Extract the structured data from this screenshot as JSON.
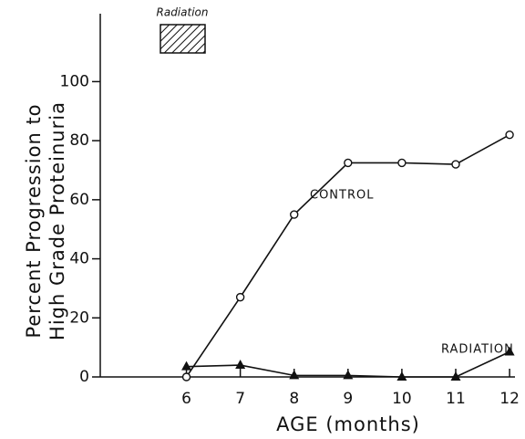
{
  "chart_data": {
    "type": "line",
    "x_label": "AGE (months)",
    "y_label": [
      "Percent Progression to",
      "High Grade Proteinuria"
    ],
    "annotations": [
      "CONTROL",
      "RADIATION",
      "Radiation"
    ],
    "x": [
      6,
      7,
      8,
      9,
      10,
      11,
      12
    ],
    "series": [
      {
        "name": "CONTROL",
        "color": "#111111",
        "marker": "circle",
        "values": [
          0,
          27,
          55,
          72.5,
          72.5,
          72,
          82
        ]
      },
      {
        "name": "RADIATION",
        "color": "#111111",
        "marker": "triangle",
        "values": [
          3.5,
          4,
          0.5,
          0.5,
          0,
          0,
          8.5
        ]
      }
    ],
    "xlim": [
      4.4,
      12.1
    ],
    "xticks": [
      6,
      7,
      8,
      9,
      10,
      11,
      12
    ],
    "ylim": [
      0,
      123
    ],
    "yticks": [
      0,
      20,
      40,
      60,
      80,
      100
    ]
  }
}
